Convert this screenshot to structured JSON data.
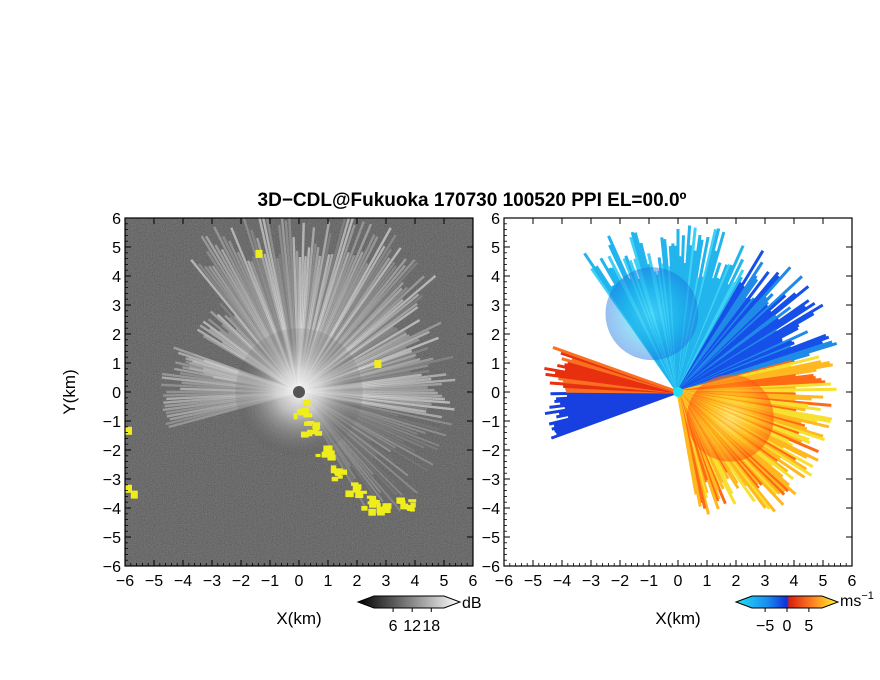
{
  "title": "3D−CDL@Fukuoka 170730 100520 PPI EL=00.0º",
  "chart_data": [
    {
      "type": "heatmap",
      "quantity": "SNR",
      "xlabel": "X(km)",
      "ylabel": "Y(km)",
      "xlim": [
        -6,
        6
      ],
      "ylim": [
        -6,
        6
      ],
      "x_ticks": [
        "−6",
        "−5",
        "−4",
        "−3",
        "−2",
        "−1",
        "0",
        "1",
        "2",
        "3",
        "4",
        "5",
        "6"
      ],
      "y_ticks": [
        "6",
        "5",
        "4",
        "3",
        "2",
        "1",
        "0",
        "−1",
        "−2",
        "−3",
        "−4",
        "−5",
        "−6"
      ],
      "colorbar": {
        "ticks": [
          "6",
          "12",
          "18"
        ],
        "values": [
          6,
          12,
          18
        ],
        "unit": "dB",
        "range": [
          0,
          22
        ]
      },
      "colors": {
        "background": "#2a2a2a",
        "high": "#f2f2f2",
        "flag": "#f0ee1a"
      }
    },
    {
      "type": "heatmap",
      "quantity": "Doppler velocity",
      "xlabel": "X(km)",
      "ylabel": "",
      "xlim": [
        -6,
        6
      ],
      "ylim": [
        -6,
        6
      ],
      "x_ticks": [
        "−6",
        "−5",
        "−4",
        "−3",
        "−2",
        "−1",
        "0",
        "1",
        "2",
        "3",
        "4",
        "5",
        "6"
      ],
      "y_ticks": [
        "6",
        "5",
        "4",
        "3",
        "2",
        "1",
        "0",
        "−1",
        "−2",
        "−3",
        "−4",
        "−5",
        "−6"
      ],
      "colorbar": {
        "ticks": [
          "−5",
          "0",
          "5"
        ],
        "values": [
          -5,
          0,
          5
        ],
        "unit": "ms",
        "unit_exp": "−1",
        "range": [
          -8,
          8
        ]
      },
      "colors": {
        "negative_far": "#18c8f0",
        "negative": "#1238e0",
        "positive": "#e82a10",
        "positive_far": "#f8f020"
      }
    }
  ]
}
